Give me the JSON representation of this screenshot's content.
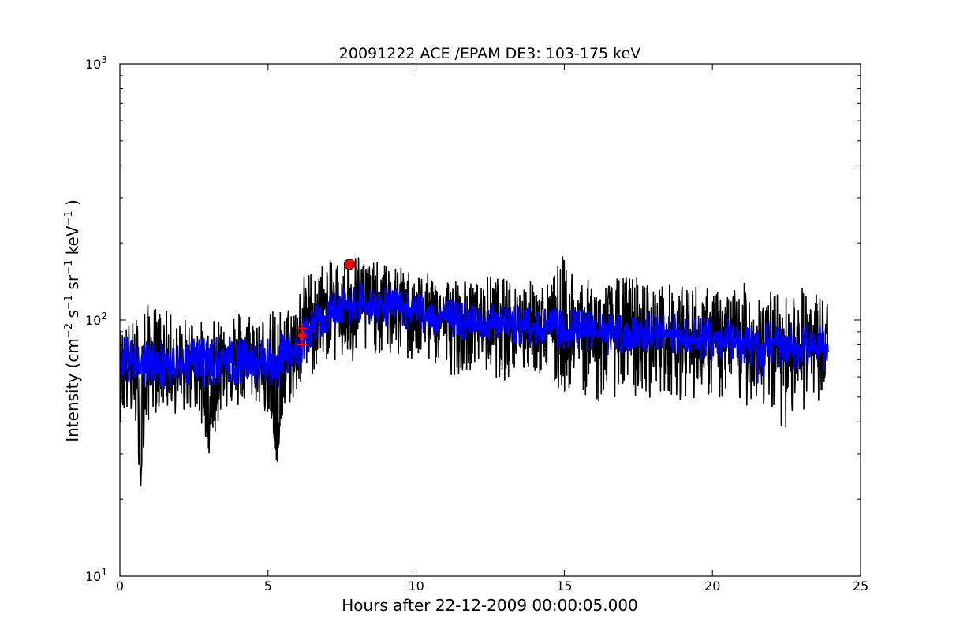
{
  "chart_data": {
    "type": "line",
    "title": "20091222 ACE /EPAM DE3: 103-175 keV",
    "xlabel": "Hours after 22-12-2009 00:00:05.000",
    "ylabel": {
      "prefix": "Intensity (cm",
      "sup1": "−2",
      "mid1": " s",
      "sup2": "−1",
      "mid2": " sr",
      "sup3": "−1",
      "mid3": " keV",
      "sup4": "−1",
      "suffix": " )"
    },
    "xlim": [
      0,
      25
    ],
    "ylim": [
      10,
      1000
    ],
    "yscale": "log",
    "grid": false,
    "x_ticks": [
      {
        "value": 0,
        "label": "0"
      },
      {
        "value": 5,
        "label": "5"
      },
      {
        "value": 10,
        "label": "10"
      },
      {
        "value": 15,
        "label": "15"
      },
      {
        "value": 20,
        "label": "20"
      },
      {
        "value": 25,
        "label": "25"
      }
    ],
    "y_ticks": [
      {
        "value": 10,
        "base": "10",
        "exp": "1"
      },
      {
        "value": 100,
        "base": "10",
        "exp": "2"
      },
      {
        "value": 1000,
        "base": "10",
        "exp": "3"
      }
    ],
    "series": [
      {
        "role": "raw",
        "color": "#000000",
        "x": [
          0.0,
          0.5,
          0.7,
          1.0,
          1.5,
          2.0,
          2.5,
          3.0,
          3.2,
          3.5,
          4.0,
          4.5,
          5.0,
          5.3,
          5.6,
          6.0,
          6.2,
          6.5,
          7.0,
          7.5,
          8.0,
          8.5,
          9.0,
          9.5,
          10.0,
          10.5,
          11.0,
          11.5,
          12.0,
          12.5,
          13.0,
          13.5,
          14.0,
          14.5,
          14.9,
          15.5,
          16.0,
          16.5,
          17.0,
          17.5,
          18.0,
          18.5,
          19.0,
          19.5,
          20.0,
          20.5,
          21.0,
          21.5,
          22.0,
          22.5,
          23.0,
          23.5,
          23.9
        ],
        "y": [
          70,
          60,
          22,
          72,
          65,
          60,
          68,
          35,
          58,
          70,
          62,
          72,
          60,
          27,
          65,
          72,
          95,
          100,
          108,
          112,
          118,
          110,
          115,
          112,
          108,
          105,
          100,
          98,
          102,
          95,
          96,
          92,
          95,
          90,
          85,
          92,
          82,
          88,
          90,
          86,
          84,
          88,
          85,
          82,
          80,
          84,
          78,
          82,
          80,
          76,
          80,
          78,
          72
        ],
        "upper": [
          95,
          100,
          120,
          115,
          110,
          100,
          105,
          95,
          100,
          110,
          112,
          108,
          105,
          115,
          110,
          130,
          150,
          160,
          170,
          175,
          185,
          170,
          165,
          160,
          155,
          150,
          150,
          145,
          140,
          150,
          145,
          140,
          145,
          140,
          180,
          150,
          140,
          140,
          150,
          150,
          135,
          140,
          135,
          140,
          130,
          130,
          140,
          135,
          130,
          125,
          135,
          130,
          125
        ],
        "lower": [
          40,
          40,
          22,
          42,
          45,
          42,
          45,
          30,
          35,
          45,
          45,
          48,
          42,
          27,
          45,
          50,
          55,
          60,
          70,
          65,
          60,
          75,
          70,
          70,
          65,
          68,
          60,
          62,
          65,
          60,
          58,
          60,
          62,
          55,
          50,
          55,
          45,
          50,
          50,
          48,
          50,
          52,
          48,
          50,
          50,
          45,
          45,
          48,
          40,
          38,
          45,
          40,
          45
        ]
      },
      {
        "role": "smoothed",
        "color": "#0000ff",
        "x": [
          0.0,
          0.5,
          1.0,
          1.5,
          2.0,
          2.5,
          3.0,
          3.5,
          4.0,
          4.5,
          5.0,
          5.5,
          6.0,
          6.5,
          7.0,
          7.5,
          8.0,
          8.5,
          9.0,
          9.5,
          10.0,
          10.5,
          11.0,
          11.5,
          12.0,
          12.5,
          13.0,
          13.5,
          14.0,
          14.5,
          15.0,
          15.5,
          16.0,
          16.5,
          17.0,
          17.5,
          18.0,
          18.5,
          19.0,
          19.5,
          20.0,
          20.5,
          21.0,
          21.5,
          22.0,
          22.5,
          23.0,
          23.5,
          23.9
        ],
        "y": [
          72,
          66,
          68,
          67,
          66,
          70,
          67,
          70,
          68,
          69,
          66,
          70,
          76,
          95,
          105,
          112,
          116,
          114,
          112,
          110,
          107,
          104,
          101,
          98,
          98,
          96,
          95,
          94,
          93,
          92,
          91,
          90,
          88,
          87,
          88,
          87,
          86,
          86,
          85,
          84,
          83,
          82,
          81,
          80,
          80,
          79,
          78,
          77,
          75
        ],
        "upper": [
          90,
          82,
          85,
          84,
          82,
          86,
          84,
          88,
          86,
          86,
          84,
          88,
          95,
          115,
          125,
          135,
          140,
          135,
          135,
          130,
          128,
          125,
          122,
          118,
          118,
          116,
          115,
          114,
          112,
          112,
          110,
          110,
          108,
          107,
          108,
          107,
          106,
          106,
          105,
          104,
          103,
          102,
          100,
          100,
          100,
          98,
          98,
          96,
          94
        ],
        "lower": [
          58,
          55,
          55,
          54,
          54,
          56,
          54,
          57,
          55,
          56,
          52,
          56,
          62,
          80,
          88,
          95,
          98,
          96,
          94,
          92,
          90,
          88,
          86,
          84,
          84,
          82,
          80,
          80,
          79,
          78,
          77,
          76,
          74,
          73,
          74,
          73,
          72,
          72,
          71,
          70,
          69,
          68,
          67,
          55,
          66,
          65,
          64,
          63,
          62
        ]
      }
    ],
    "markers": [
      {
        "shape": "circle",
        "x": 7.75,
        "y": 165,
        "color": "#ff0000"
      },
      {
        "shape": "diamond",
        "x": 6.15,
        "y": 87,
        "color": "#ff0000"
      },
      {
        "shape": "plus",
        "x": 6.15,
        "y": 93,
        "color": "#ff0000"
      },
      {
        "shape": "plus",
        "x": 6.15,
        "y": 80,
        "color": "#ff0000"
      }
    ]
  }
}
